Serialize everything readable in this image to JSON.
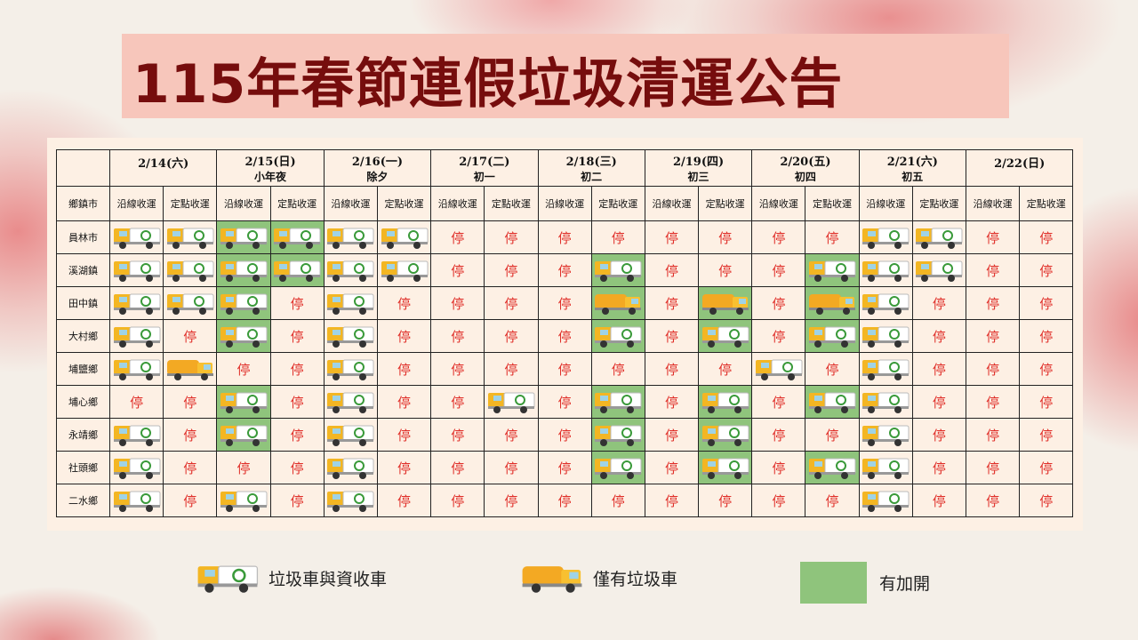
{
  "header": {
    "title": "115年春節連假垃圾清運公告"
  },
  "table": {
    "corner": "鄉鎮市",
    "days": [
      {
        "date": "2/14(六)"
      },
      {
        "date": "2/15(日)",
        "note": "小年夜"
      },
      {
        "date": "2/16(一)",
        "note": "除夕"
      },
      {
        "date": "2/17(二)",
        "note": "初一"
      },
      {
        "date": "2/18(三)",
        "note": "初二"
      },
      {
        "date": "2/19(四)",
        "note": "初三"
      },
      {
        "date": "2/20(五)",
        "note": "初四"
      },
      {
        "date": "2/21(六)",
        "note": "初五"
      },
      {
        "date": "2/22(日)"
      }
    ],
    "modes": [
      "沿線收運",
      "定點收運"
    ],
    "rows": [
      {
        "name": "員林市",
        "cells": [
          {
            "icon": "both"
          },
          {
            "icon": "both"
          },
          {
            "icon": "both",
            "added": true
          },
          {
            "icon": "both",
            "added": true
          },
          {
            "icon": "both"
          },
          {
            "icon": "both"
          },
          "停",
          "停",
          "停",
          "停",
          "停",
          "停",
          "停",
          "停",
          {
            "icon": "both"
          },
          {
            "icon": "both"
          },
          "停",
          "停"
        ]
      },
      {
        "name": "溪湖鎮",
        "cells": [
          {
            "icon": "both"
          },
          {
            "icon": "both"
          },
          {
            "icon": "both",
            "added": true
          },
          {
            "icon": "both",
            "added": true
          },
          {
            "icon": "both"
          },
          {
            "icon": "both"
          },
          "停",
          "停",
          "停",
          {
            "icon": "both",
            "added": true
          },
          "停",
          "停",
          "停",
          {
            "icon": "both",
            "added": true
          },
          {
            "icon": "both"
          },
          {
            "icon": "both"
          },
          "停",
          "停"
        ]
      },
      {
        "name": "田中鎮",
        "cells": [
          {
            "icon": "both"
          },
          {
            "icon": "both"
          },
          {
            "icon": "both",
            "added": true
          },
          "停",
          {
            "icon": "both"
          },
          "停",
          "停",
          "停",
          "停",
          {
            "icon": "truck",
            "added": true
          },
          "停",
          {
            "icon": "truck",
            "added": true
          },
          "停",
          {
            "icon": "truck",
            "added": true
          },
          {
            "icon": "both"
          },
          "停",
          "停",
          "停"
        ]
      },
      {
        "name": "大村鄉",
        "cells": [
          {
            "icon": "both"
          },
          "停",
          {
            "icon": "both",
            "added": true
          },
          "停",
          {
            "icon": "both"
          },
          "停",
          "停",
          "停",
          "停",
          {
            "icon": "both",
            "added": true
          },
          "停",
          {
            "icon": "both",
            "added": true
          },
          "停",
          {
            "icon": "both",
            "added": true
          },
          {
            "icon": "both"
          },
          "停",
          "停",
          "停"
        ]
      },
      {
        "name": "埔鹽鄉",
        "cells": [
          {
            "icon": "both"
          },
          {
            "icon": "truck"
          },
          "停",
          "停",
          {
            "icon": "both"
          },
          "停",
          "停",
          "停",
          "停",
          "停",
          "停",
          "停",
          {
            "icon": "both"
          },
          "停",
          {
            "icon": "both"
          },
          "停",
          "停",
          "停"
        ]
      },
      {
        "name": "埔心鄉",
        "cells": [
          "停",
          "停",
          {
            "icon": "both",
            "added": true
          },
          "停",
          {
            "icon": "both"
          },
          "停",
          "停",
          {
            "icon": "both"
          },
          "停",
          {
            "icon": "both",
            "added": true
          },
          "停",
          {
            "icon": "both",
            "added": true
          },
          "停",
          {
            "icon": "both",
            "added": true
          },
          {
            "icon": "both"
          },
          "停",
          "停",
          "停"
        ]
      },
      {
        "name": "永靖鄉",
        "cells": [
          {
            "icon": "both"
          },
          "停",
          {
            "icon": "both",
            "added": true
          },
          "停",
          {
            "icon": "both"
          },
          "停",
          "停",
          "停",
          "停",
          {
            "icon": "both",
            "added": true
          },
          "停",
          {
            "icon": "both",
            "added": true
          },
          "停",
          "停",
          {
            "icon": "both"
          },
          "停",
          "停",
          "停"
        ]
      },
      {
        "name": "社頭鄉",
        "cells": [
          {
            "icon": "both"
          },
          "停",
          "停",
          "停",
          {
            "icon": "both"
          },
          "停",
          "停",
          "停",
          "停",
          {
            "icon": "both",
            "added": true
          },
          "停",
          {
            "icon": "both",
            "added": true
          },
          "停",
          {
            "icon": "both",
            "added": true
          },
          {
            "icon": "both"
          },
          "停",
          "停",
          "停"
        ]
      },
      {
        "name": "二水鄉",
        "cells": [
          {
            "icon": "both"
          },
          "停",
          {
            "icon": "both"
          },
          "停",
          {
            "icon": "both"
          },
          "停",
          "停",
          "停",
          "停",
          "停",
          "停",
          "停",
          "停",
          "停",
          {
            "icon": "both"
          },
          "停",
          "停",
          "停"
        ]
      }
    ]
  },
  "legend": [
    {
      "icon": "both",
      "label": "垃圾車與資收車"
    },
    {
      "icon": "truck",
      "label": "僅有垃圾車"
    },
    {
      "added": true,
      "label": "有加開"
    }
  ],
  "colors": {
    "added": "#8fc47c",
    "stop": "#e0302a"
  }
}
